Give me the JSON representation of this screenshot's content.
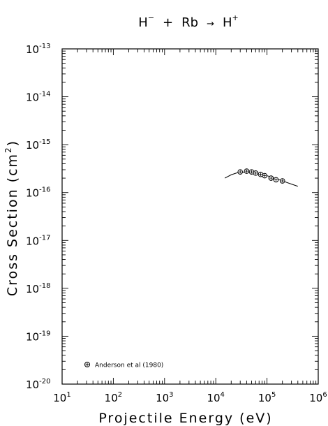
{
  "chart_data": {
    "type": "scatter",
    "title": {
      "reactant1": "H",
      "reactant1_charge": "−",
      "plus": "+",
      "reactant2": "Rb",
      "arrow": "→",
      "product": "H",
      "product_charge": "+"
    },
    "xlabel": "Projectile Energy (eV)",
    "ylabel": {
      "text": "Cross Section (cm",
      "superscript": "2",
      "close": ")"
    },
    "x_scale": "log",
    "y_scale": "log",
    "xlim": [
      10,
      1000000
    ],
    "ylim": [
      1e-20,
      1e-13
    ],
    "x_ticks": [
      {
        "base": "10",
        "exp": "1"
      },
      {
        "base": "10",
        "exp": "2"
      },
      {
        "base": "10",
        "exp": "3"
      },
      {
        "base": "10",
        "exp": "4"
      },
      {
        "base": "10",
        "exp": "5"
      },
      {
        "base": "10",
        "exp": "6"
      }
    ],
    "y_ticks": [
      {
        "base": "10",
        "exp": "-20"
      },
      {
        "base": "10",
        "exp": "-19"
      },
      {
        "base": "10",
        "exp": "-18"
      },
      {
        "base": "10",
        "exp": "-17"
      },
      {
        "base": "10",
        "exp": "-16"
      },
      {
        "base": "10",
        "exp": "-15"
      },
      {
        "base": "10",
        "exp": "-14"
      },
      {
        "base": "10",
        "exp": "-13"
      }
    ],
    "grid": false,
    "legend_position": "bottom-left",
    "series": [
      {
        "name": "Anderson et al (1980)",
        "marker": "circled-cross",
        "x": [
          30000,
          40000,
          50000,
          60000,
          75000,
          90000,
          120000,
          150000,
          200000
        ],
        "y": [
          2.7e-16,
          2.8e-16,
          2.7e-16,
          2.55e-16,
          2.4e-16,
          2.25e-16,
          2e-16,
          1.85e-16,
          1.75e-16
        ]
      }
    ],
    "fit_curve": {
      "x": [
        15000,
        20000,
        25000,
        30000,
        40000,
        50000,
        70000,
        100000,
        150000,
        200000,
        300000,
        400000
      ],
      "y": [
        2e-16,
        2.35e-16,
        2.55e-16,
        2.65e-16,
        2.7e-16,
        2.65e-16,
        2.5e-16,
        2.25e-16,
        1.95e-16,
        1.75e-16,
        1.5e-16,
        1.35e-16
      ]
    }
  }
}
